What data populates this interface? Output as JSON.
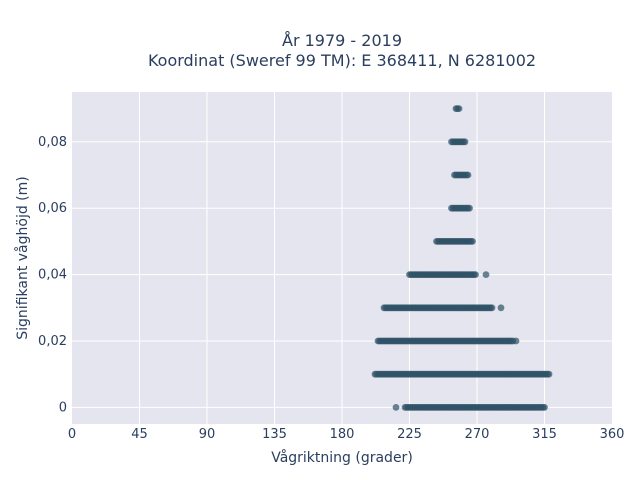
{
  "chart_data": {
    "type": "scatter",
    "title": "År 1979 - 2019",
    "subtitle": "Koordinat (Sweref 99 TM): E 368411, N 6281002",
    "xlabel": "Vågriktning (grader)",
    "ylabel": "Signifikant våghöjd (m)",
    "xlim": [
      0,
      360
    ],
    "ylim": [
      -0.005,
      0.095
    ],
    "xticks": [
      0,
      45,
      90,
      135,
      180,
      225,
      270,
      315,
      360
    ],
    "yticks": [
      0,
      0.02,
      0.04,
      0.06,
      0.08
    ],
    "ytick_labels": [
      "0",
      "0,02",
      "0,04",
      "0,06",
      "0,08"
    ],
    "grid": true,
    "marker_color": "#2f5366",
    "plot_background": "#e5e5ef",
    "bands": [
      {
        "y": 0.0,
        "x_min": 222,
        "x_max": 315,
        "outliers": [
          216
        ]
      },
      {
        "y": 0.01,
        "x_min": 202,
        "x_max": 318,
        "outliers": []
      },
      {
        "y": 0.02,
        "x_min": 204,
        "x_max": 294,
        "outliers": [
          296
        ]
      },
      {
        "y": 0.03,
        "x_min": 208,
        "x_max": 280,
        "outliers": [
          286
        ]
      },
      {
        "y": 0.04,
        "x_min": 225,
        "x_max": 269,
        "outliers": [
          276
        ]
      },
      {
        "y": 0.05,
        "x_min": 243,
        "x_max": 267,
        "outliers": []
      },
      {
        "y": 0.06,
        "x_min": 253,
        "x_max": 265,
        "outliers": []
      },
      {
        "y": 0.07,
        "x_min": 255,
        "x_max": 264,
        "outliers": []
      },
      {
        "y": 0.08,
        "x_min": 253,
        "x_max": 262,
        "outliers": []
      },
      {
        "y": 0.09,
        "x_min": 256,
        "x_max": 258,
        "outliers": []
      }
    ]
  }
}
